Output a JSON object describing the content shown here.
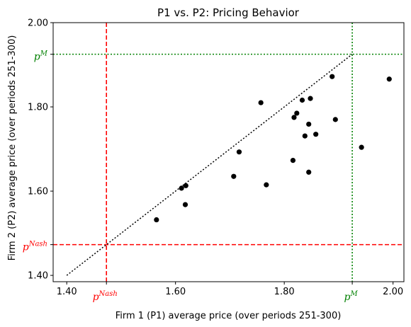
{
  "chart_data": {
    "type": "scatter",
    "title": "P1 vs. P2: Pricing Behavior",
    "xlabel": "Firm 1 (P1) average price (over periods 251-300)",
    "ylabel": "Firm 2 (P2) average price (over periods 251-300)",
    "xlim": [
      1.375,
      2.02
    ],
    "ylim": [
      1.385,
      2.0
    ],
    "x_ticks": [
      1.4,
      1.6,
      1.8,
      2.0
    ],
    "x_tick_labels": [
      "1.40",
      "1.60",
      "1.80",
      "2.00"
    ],
    "y_ticks": [
      1.4,
      1.6,
      1.8,
      2.0
    ],
    "y_tick_labels": [
      "1.40",
      "1.60",
      "1.80",
      "2.00"
    ],
    "grid": false,
    "point_color": "#000000",
    "points": [
      {
        "x": 1.565,
        "y": 1.532
      },
      {
        "x": 1.611,
        "y": 1.607
      },
      {
        "x": 1.618,
        "y": 1.568
      },
      {
        "x": 1.619,
        "y": 1.613
      },
      {
        "x": 1.707,
        "y": 1.635
      },
      {
        "x": 1.717,
        "y": 1.693
      },
      {
        "x": 1.757,
        "y": 1.81
      },
      {
        "x": 1.767,
        "y": 1.615
      },
      {
        "x": 1.816,
        "y": 1.673
      },
      {
        "x": 1.818,
        "y": 1.775
      },
      {
        "x": 1.823,
        "y": 1.785
      },
      {
        "x": 1.833,
        "y": 1.816
      },
      {
        "x": 1.838,
        "y": 1.731
      },
      {
        "x": 1.845,
        "y": 1.759
      },
      {
        "x": 1.845,
        "y": 1.645
      },
      {
        "x": 1.848,
        "y": 1.82
      },
      {
        "x": 1.858,
        "y": 1.735
      },
      {
        "x": 1.888,
        "y": 1.872
      },
      {
        "x": 1.894,
        "y": 1.77
      },
      {
        "x": 1.942,
        "y": 1.704
      },
      {
        "x": 1.993,
        "y": 1.866
      }
    ],
    "diagonal": {
      "from": 1.4,
      "to": 1.925,
      "color": "#000000",
      "style": "dotted"
    },
    "reference_lines": {
      "nash": {
        "value": 1.473,
        "color": "#ff0000",
        "style": "dashed",
        "base": "p",
        "sup": "Nash"
      },
      "monopoly": {
        "value": 1.925,
        "color": "#008000",
        "style": "dotted",
        "base": "p",
        "sup": "M"
      }
    }
  }
}
